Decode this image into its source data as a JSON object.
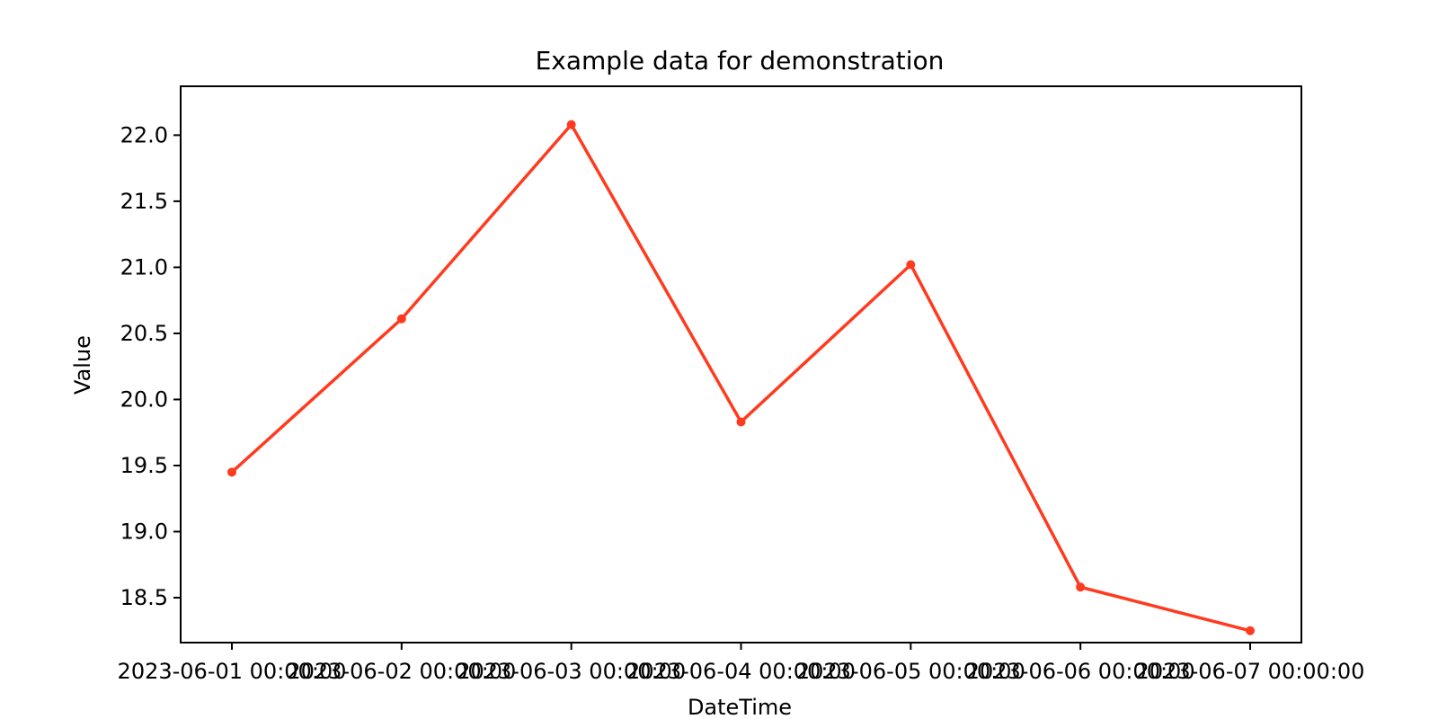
{
  "chart_data": {
    "type": "line",
    "title": "Example data for demonstration",
    "xlabel": "DateTime",
    "ylabel": "Value",
    "x": [
      "2023-06-01 00:00:00",
      "2023-06-02 00:00:00",
      "2023-06-03 00:00:00",
      "2023-06-04 00:00:00",
      "2023-06-05 00:00:00",
      "2023-06-06 00:00:00",
      "2023-06-07 00:00:00"
    ],
    "series": [
      {
        "values": [
          19.45,
          20.61,
          22.08,
          19.83,
          21.02,
          18.58,
          18.25
        ],
        "color": "#ff3b1f"
      }
    ],
    "ylim": [
      18.16,
      22.37
    ],
    "yticks": [
      18.5,
      19.0,
      19.5,
      20.0,
      20.5,
      21.0,
      21.5,
      22.0
    ],
    "ytick_labels": [
      "18.5",
      "19.0",
      "19.5",
      "20.0",
      "20.5",
      "21.0",
      "21.5",
      "22.0"
    ],
    "grid": false,
    "legend": "none"
  }
}
